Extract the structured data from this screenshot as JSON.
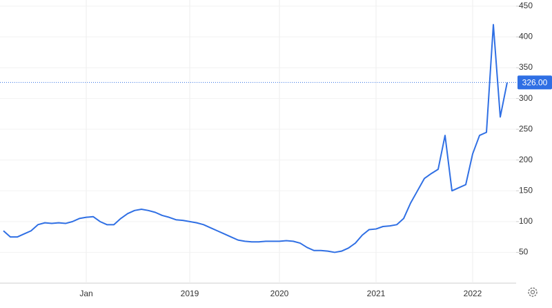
{
  "chart_data": {
    "type": "line",
    "categories": [
      null,
      null,
      null,
      null,
      null,
      null,
      null,
      null,
      null,
      null,
      null,
      null,
      "Jan",
      null,
      null,
      null,
      null,
      null,
      null,
      null,
      null,
      null,
      null,
      null,
      null,
      null,
      null,
      "2019",
      null,
      null,
      null,
      null,
      null,
      null,
      null,
      null,
      null,
      null,
      null,
      null,
      "2020",
      null,
      null,
      null,
      null,
      null,
      null,
      null,
      null,
      null,
      null,
      null,
      null,
      null,
      "2021",
      null,
      null,
      null,
      null,
      null,
      null,
      null,
      null,
      null,
      null,
      null,
      null,
      null,
      "2022",
      null,
      null,
      null,
      null,
      null
    ],
    "series": [
      {
        "color": "#2f6fe4",
        "values": [
          85,
          75,
          75,
          80,
          85,
          95,
          98,
          97,
          98,
          97,
          100,
          105,
          107,
          108,
          100,
          95,
          95,
          105,
          113,
          118,
          120,
          118,
          115,
          110,
          107,
          103,
          102,
          100,
          98,
          95,
          90,
          85,
          80,
          75,
          70,
          68,
          67,
          67,
          68,
          68,
          68,
          69,
          68,
          65,
          58,
          53,
          53,
          52,
          50,
          52,
          57,
          65,
          78,
          87,
          88,
          92,
          93,
          95,
          105,
          130,
          150,
          170,
          178,
          185,
          240,
          150,
          155,
          160,
          210,
          240,
          245,
          420,
          270,
          326
        ]
      }
    ],
    "last_value": {
      "value": 326,
      "label": "326.00"
    },
    "ylim": [
      0,
      460
    ],
    "yticks": [
      50,
      100,
      150,
      200,
      250,
      300,
      350,
      400,
      450
    ],
    "grid": true
  }
}
